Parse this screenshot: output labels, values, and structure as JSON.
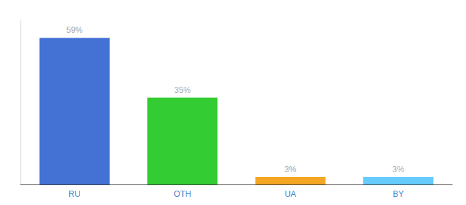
{
  "chart_data": {
    "type": "bar",
    "categories": [
      "RU",
      "OTH",
      "UA",
      "BY"
    ],
    "values": [
      59,
      35,
      3,
      3
    ],
    "value_labels": [
      "59%",
      "35%",
      "3%",
      "3%"
    ],
    "colors": [
      "#4472d4",
      "#33cc33",
      "#f5a623",
      "#66ccff"
    ],
    "ylim": [
      0,
      66
    ],
    "data_labels": true,
    "tick_labels": "x",
    "grid": false
  }
}
